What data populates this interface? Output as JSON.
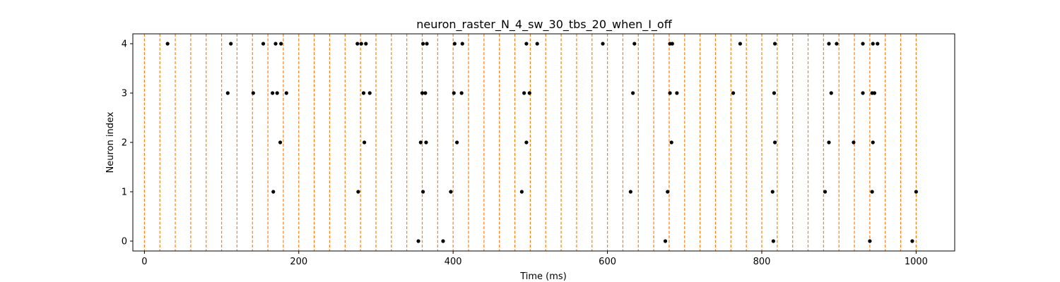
{
  "chart_data": {
    "type": "scatter",
    "title": "neuron_raster_N_4_sw_30_tbs_20_when_I_off",
    "xlabel": "Time (ms)",
    "ylabel": "Neuron index",
    "xlim": [
      -15,
      1050
    ],
    "ylim": [
      -0.2,
      4.2
    ],
    "x_ticks": [
      0,
      200,
      400,
      600,
      800,
      1000
    ],
    "y_ticks": [
      0,
      1,
      2,
      3,
      4
    ],
    "grid": false,
    "legend": "none",
    "marker_color": "#000000",
    "vline_color": "#ff7f0e",
    "vline_style": "dashed",
    "vlines": [
      0,
      20,
      40,
      60,
      80,
      100,
      120,
      140,
      160,
      180,
      200,
      220,
      240,
      260,
      280,
      300,
      320,
      340,
      360,
      380,
      400,
      420,
      440,
      460,
      480,
      500,
      520,
      540,
      560,
      580,
      600,
      620,
      640,
      660,
      680,
      700,
      720,
      740,
      760,
      780,
      800,
      820,
      840,
      860,
      880,
      900,
      920,
      940,
      960,
      980,
      1000
    ],
    "series": [
      {
        "neuron": 0,
        "x": [
          355,
          387,
          675,
          815,
          940,
          995
        ]
      },
      {
        "neuron": 1,
        "x": [
          167,
          277,
          361,
          397,
          489,
          630,
          678,
          814,
          882,
          943,
          1000
        ]
      },
      {
        "neuron": 2,
        "x": [
          176,
          285,
          358,
          365,
          405,
          495,
          683,
          817,
          887,
          919,
          944
        ]
      },
      {
        "neuron": 3,
        "x": [
          108,
          141,
          166,
          172,
          184,
          284,
          292,
          360,
          364,
          401,
          411,
          492,
          499,
          633,
          681,
          690,
          763,
          816,
          890,
          931,
          943,
          946
        ]
      },
      {
        "neuron": 4,
        "x": [
          30,
          112,
          154,
          170,
          177,
          276,
          281,
          287,
          361,
          366,
          402,
          412,
          495,
          509,
          594,
          635,
          681,
          684,
          772,
          817,
          887,
          897,
          931,
          944,
          950
        ]
      }
    ]
  }
}
